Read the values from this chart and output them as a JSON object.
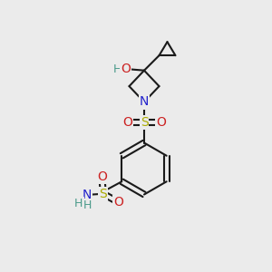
{
  "background_color": "#ebebeb",
  "bond_color": "#1a1a1a",
  "bond_width": 1.5,
  "atom_colors": {
    "C": "#1a1a1a",
    "H": "#4a9a8a",
    "N": "#2222cc",
    "O": "#cc2222",
    "S": "#aaaa00"
  },
  "font_size_atoms": 10,
  "font_size_small": 9
}
